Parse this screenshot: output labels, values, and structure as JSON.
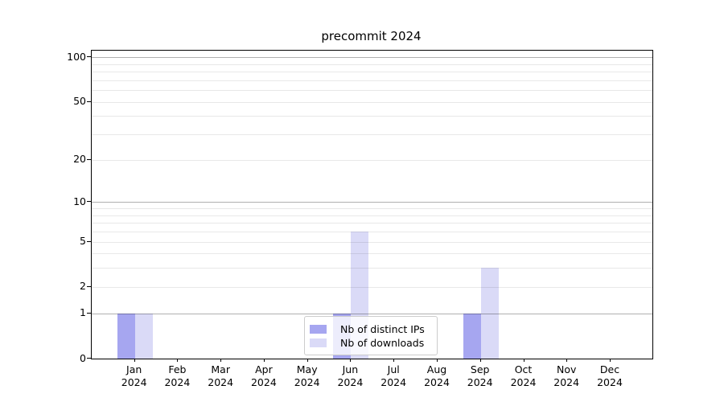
{
  "chart_data": {
    "type": "bar",
    "title": "precommit 2024",
    "categories": [
      {
        "month": "Jan",
        "year": "2024"
      },
      {
        "month": "Feb",
        "year": "2024"
      },
      {
        "month": "Mar",
        "year": "2024"
      },
      {
        "month": "Apr",
        "year": "2024"
      },
      {
        "month": "May",
        "year": "2024"
      },
      {
        "month": "Jun",
        "year": "2024"
      },
      {
        "month": "Jul",
        "year": "2024"
      },
      {
        "month": "Aug",
        "year": "2024"
      },
      {
        "month": "Sep",
        "year": "2024"
      },
      {
        "month": "Oct",
        "year": "2024"
      },
      {
        "month": "Nov",
        "year": "2024"
      },
      {
        "month": "Dec",
        "year": "2024"
      }
    ],
    "series": [
      {
        "name": "Nb of distinct IPs",
        "color": "#a6a6f0",
        "values": [
          1,
          0,
          0,
          0,
          0,
          1,
          0,
          0,
          1,
          0,
          0,
          0
        ]
      },
      {
        "name": "Nb of downloads",
        "color": "#dadaf7",
        "values": [
          1,
          0,
          0,
          0,
          0,
          6,
          0,
          0,
          3,
          0,
          0,
          0
        ]
      }
    ],
    "yscale": "symlog-log1p",
    "ylim": [
      0,
      110
    ],
    "yticks": [
      100,
      50,
      20,
      10,
      5,
      2,
      1,
      0
    ],
    "ytick_labels": [
      "100",
      "50",
      "20",
      "10",
      "5",
      "2",
      "1",
      "0"
    ],
    "grid": {
      "major": [
        1,
        10,
        100
      ],
      "minor": [
        2,
        3,
        4,
        5,
        6,
        7,
        8,
        9,
        20,
        30,
        40,
        50,
        60,
        70,
        80,
        90
      ]
    },
    "legend": {
      "position": "lower center",
      "entries": [
        "Nb of distinct IPs",
        "Nb of downloads"
      ]
    },
    "colors": {
      "spine": "#000000",
      "grid_major": "#b0b0b0",
      "grid_minor": "#e8e8e8",
      "text": "#000000",
      "background": "#ffffff"
    }
  }
}
